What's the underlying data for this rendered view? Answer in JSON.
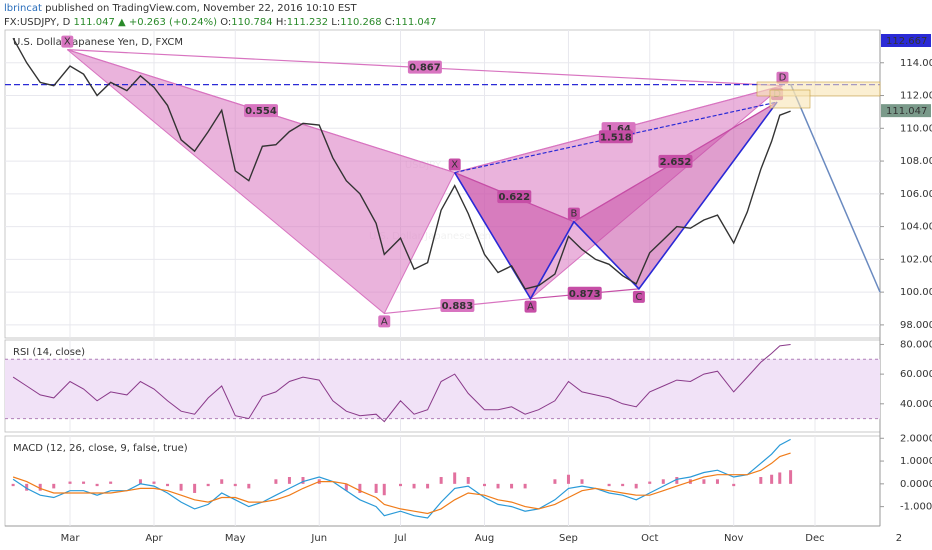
{
  "header": {
    "author": "lbrincat",
    "published": "published on TradingView.com, November 22, 2016 10:10 EST",
    "symbol": "FX:USDJPY, D",
    "price": "111.047",
    "change": "▲ +0.263 (+0.24%)",
    "open_label": "O:",
    "open": "110.784",
    "high_label": "H:",
    "high": "111.232",
    "low_label": "L:",
    "low": "110.268",
    "close_label": "C:",
    "close": "111.047"
  },
  "chart_data": [
    {
      "type": "line",
      "title": "U.S. Dollar/Japanese Yen, D, FXCM",
      "watermark": "USDJPY, D",
      "watermark_sub": "U.S. Dollar/Japanese Yen",
      "x": [
        40,
        45,
        50,
        55,
        61,
        66,
        71,
        76,
        82,
        87,
        92,
        97,
        102,
        107,
        112,
        117,
        122,
        127,
        132,
        137,
        142,
        147,
        153,
        158,
        163,
        168,
        174,
        177,
        183,
        188,
        193,
        198,
        203,
        208,
        214,
        219,
        224,
        229,
        234,
        240,
        245,
        250,
        255,
        260,
        265,
        270,
        275,
        280,
        285,
        290,
        295,
        300,
        306,
        311,
        316,
        320,
        323,
        327
      ],
      "series": [
        {
          "name": "USDJPY",
          "color": "#333333",
          "values": [
            115.5,
            114.0,
            112.8,
            112.6,
            113.8,
            113.3,
            112.0,
            112.8,
            112.3,
            113.2,
            112.5,
            111.4,
            109.3,
            108.6,
            109.8,
            111.1,
            107.4,
            106.8,
            108.9,
            109.0,
            109.8,
            110.3,
            110.2,
            108.2,
            106.8,
            106.0,
            104.2,
            102.3,
            103.3,
            101.4,
            101.8,
            105.0,
            106.5,
            104.8,
            102.3,
            101.2,
            101.6,
            100.2,
            100.4,
            101.1,
            103.4,
            102.6,
            102.0,
            101.7,
            101.0,
            100.5,
            102.4,
            103.2,
            104.0,
            103.9,
            104.4,
            104.7,
            103.0,
            104.9,
            107.5,
            109.2,
            110.8,
            111.05
          ]
        }
      ],
      "xlim": [
        37,
        360
      ],
      "xticks": [
        {
          "value": 61,
          "label": "Mar"
        },
        {
          "value": 92,
          "label": "Apr"
        },
        {
          "value": 122,
          "label": "May"
        },
        {
          "value": 153,
          "label": "Jun"
        },
        {
          "value": 183,
          "label": "Jul"
        },
        {
          "value": 214,
          "label": "Aug"
        },
        {
          "value": 245,
          "label": "Sep"
        },
        {
          "value": 275,
          "label": "Oct"
        },
        {
          "value": 306,
          "label": "Nov"
        },
        {
          "value": 336,
          "label": "Dec"
        },
        {
          "value": 367,
          "label": "2"
        }
      ],
      "ylim": [
        97.2,
        116.0
      ],
      "yticks": [
        {
          "value": 98,
          "label": "98.000"
        },
        {
          "value": 100,
          "label": "100.000"
        },
        {
          "value": 102,
          "label": "102.000"
        },
        {
          "value": 104,
          "label": "104.000"
        },
        {
          "value": 106,
          "label": "106.000"
        },
        {
          "value": 108,
          "label": "108.000"
        },
        {
          "value": 110,
          "label": "110.000"
        },
        {
          "value": 112,
          "label": "112.000"
        },
        {
          "value": 114,
          "label": "114.000"
        }
      ],
      "grid": true,
      "level": {
        "value": 112.667,
        "label": "112.667",
        "color": "#2a2ad6"
      },
      "last": {
        "value": 111.047,
        "label": "111.047",
        "color": "#7a9a8a"
      },
      "patterns": [
        {
          "color": "#d874c0",
          "x": [
            60,
            177,
            203,
            231,
            324
          ],
          "y": [
            114.8,
            98.7,
            107.3,
            99.6,
            112.6
          ],
          "labels": [
            "X",
            "A",
            null,
            null,
            "D"
          ],
          "ratios": [
            0.867,
            0.554,
            0.883,
            1.64
          ]
        },
        {
          "color": "#c64ea6",
          "x": [
            203,
            231,
            247,
            271,
            322
          ],
          "y": [
            107.3,
            99.6,
            104.3,
            100.2,
            111.6
          ],
          "labels": [
            "X",
            "A",
            "B",
            "C",
            "D"
          ],
          "ratios": [
            0.622,
            0.873,
            1.518,
            2.652
          ],
          "leg_color": "#2a2ad6"
        }
      ],
      "projection": {
        "x": [
          327,
          360
        ],
        "y": [
          112.7,
          100.0
        ],
        "color": "#6a8ac0"
      }
    },
    {
      "type": "line",
      "title": "RSI (14, close)",
      "series": [
        {
          "name": "RSI",
          "color": "#8a3a8a",
          "values": [
            58,
            52,
            46,
            44,
            55,
            50,
            42,
            48,
            46,
            55,
            50,
            42,
            35,
            33,
            44,
            52,
            32,
            30,
            45,
            48,
            55,
            58,
            56,
            42,
            35,
            32,
            33,
            28,
            42,
            33,
            36,
            55,
            60,
            47,
            36,
            36,
            38,
            33,
            36,
            42,
            55,
            48,
            46,
            44,
            40,
            38,
            48,
            52,
            56,
            55,
            60,
            62,
            48,
            58,
            68,
            74,
            79,
            80
          ]
        }
      ],
      "ylim": [
        21,
        83
      ],
      "yticks": [
        {
          "value": 80,
          "label": "80.0000"
        },
        {
          "value": 60,
          "label": "60.0000"
        },
        {
          "value": 40,
          "label": "40.0000"
        }
      ],
      "band": [
        30,
        70
      ],
      "band_color": "#f1e2f7"
    },
    {
      "type": "macd",
      "title": "MACD (12, 26, close, 9, false, true)",
      "series": [
        {
          "name": "MACD",
          "color": "#2a9ad8",
          "values": [
            0.2,
            -0.2,
            -0.5,
            -0.6,
            -0.3,
            -0.3,
            -0.5,
            -0.3,
            -0.3,
            0.0,
            -0.1,
            -0.4,
            -0.8,
            -1.1,
            -0.9,
            -0.4,
            -0.7,
            -1.0,
            -0.8,
            -0.5,
            -0.2,
            0.1,
            0.3,
            0.1,
            -0.3,
            -0.7,
            -1.0,
            -1.4,
            -1.2,
            -1.4,
            -1.5,
            -0.8,
            -0.2,
            -0.1,
            -0.6,
            -0.9,
            -1.0,
            -1.2,
            -1.1,
            -0.7,
            -0.2,
            -0.1,
            -0.2,
            -0.4,
            -0.5,
            -0.7,
            -0.4,
            -0.1,
            0.2,
            0.3,
            0.5,
            0.6,
            0.3,
            0.4,
            0.9,
            1.3,
            1.7,
            1.95
          ]
        },
        {
          "name": "Signal",
          "color": "#f07c1a",
          "values": [
            0.3,
            0.1,
            -0.2,
            -0.4,
            -0.4,
            -0.4,
            -0.4,
            -0.4,
            -0.3,
            -0.2,
            -0.2,
            -0.3,
            -0.5,
            -0.7,
            -0.8,
            -0.6,
            -0.6,
            -0.8,
            -0.8,
            -0.7,
            -0.5,
            -0.2,
            0.1,
            0.1,
            0.0,
            -0.3,
            -0.6,
            -0.9,
            -1.1,
            -1.2,
            -1.3,
            -1.1,
            -0.7,
            -0.4,
            -0.5,
            -0.7,
            -0.8,
            -1.0,
            -1.1,
            -0.9,
            -0.6,
            -0.3,
            -0.2,
            -0.3,
            -0.4,
            -0.5,
            -0.5,
            -0.3,
            -0.1,
            0.1,
            0.3,
            0.4,
            0.4,
            0.4,
            0.6,
            0.9,
            1.2,
            1.35
          ]
        },
        {
          "name": "Histogram",
          "color": "#e2709e",
          "values": [
            -0.1,
            -0.3,
            -0.3,
            -0.2,
            0.1,
            0.1,
            -0.1,
            0.1,
            0.0,
            0.2,
            0.1,
            -0.1,
            -0.3,
            -0.4,
            -0.1,
            0.2,
            -0.1,
            -0.2,
            0.0,
            0.2,
            0.3,
            0.3,
            0.2,
            0.0,
            -0.3,
            -0.4,
            -0.4,
            -0.5,
            -0.1,
            -0.2,
            -0.2,
            0.3,
            0.5,
            0.3,
            -0.1,
            -0.2,
            -0.2,
            -0.2,
            0.0,
            0.2,
            0.4,
            0.2,
            0.0,
            -0.1,
            -0.1,
            -0.2,
            0.1,
            0.2,
            0.3,
            0.2,
            0.2,
            0.2,
            -0.1,
            0.0,
            0.3,
            0.4,
            0.5,
            0.6
          ]
        }
      ],
      "ylim": [
        -1.85,
        2.1
      ],
      "yticks": [
        {
          "value": 2,
          "label": "2.0000"
        },
        {
          "value": 1,
          "label": "1.0000"
        },
        {
          "value": 0,
          "label": "0.0000"
        },
        {
          "value": -1,
          "label": "-1.0000"
        }
      ]
    }
  ]
}
